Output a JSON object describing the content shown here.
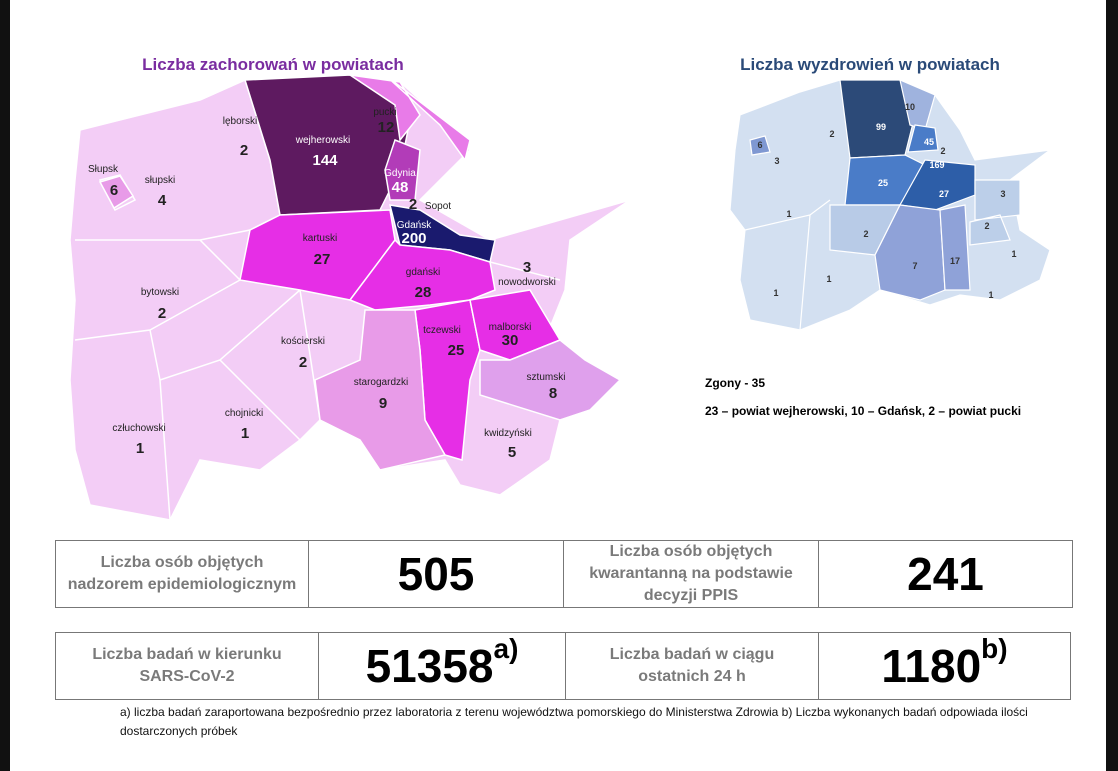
{
  "left_map": {
    "title": "Liczba zachorowań w powiatach",
    "regions": [
      {
        "name": "lęborski",
        "value": 2
      },
      {
        "name": "pucki",
        "value": 12
      },
      {
        "name": "wejherowski",
        "value": 144
      },
      {
        "name": "Słupsk",
        "value": 6
      },
      {
        "name": "słupski",
        "value": 4
      },
      {
        "name": "Gdynia",
        "value": 48
      },
      {
        "name": "Sopot",
        "value": 2
      },
      {
        "name": "Gdańsk",
        "value": 200
      },
      {
        "name": "kartuski",
        "value": 27
      },
      {
        "name": "gdański",
        "value": 28
      },
      {
        "name": "nowodworski",
        "value": 3
      },
      {
        "name": "bytowski",
        "value": 2
      },
      {
        "name": "kościerski",
        "value": 2
      },
      {
        "name": "tczewski",
        "value": 25
      },
      {
        "name": "malborski",
        "value": 30
      },
      {
        "name": "starogardzki",
        "value": 9
      },
      {
        "name": "sztumski",
        "value": 8
      },
      {
        "name": "chojnicki",
        "value": 1
      },
      {
        "name": "człuchowski",
        "value": 1
      },
      {
        "name": "kwidzyński",
        "value": 5
      }
    ]
  },
  "right_map": {
    "title": "Liczba wyzdrowień w powiatach",
    "values": [
      6,
      3,
      2,
      99,
      10,
      45,
      2,
      169,
      25,
      27,
      3,
      1,
      2,
      2,
      7,
      17,
      1,
      1,
      1,
      1
    ]
  },
  "deaths": {
    "total": "Zgony - 35",
    "breakdown": "23 – powiat wejherowski, 10 – Gdańsk, 2 – powiat pucki"
  },
  "table_1": {
    "cells": [
      {
        "text": "Liczba osób objętych nadzorem epidemiologicznym"
      },
      {
        "value": 505
      },
      {
        "text": "Liczba osób objętych kwarantanną na podstawie decyzji PPIS"
      },
      {
        "value": 241
      }
    ]
  },
  "table_2": {
    "cells": [
      {
        "text": "Liczba badań w kierunku SARS-CoV-2"
      },
      {
        "value": 51358,
        "note": "a)"
      },
      {
        "text": "Liczba badań w ciągu ostatnich 24 h"
      },
      {
        "value": 1180,
        "note": "b)"
      }
    ]
  },
  "footnote": "a) liczba badań zaraportowana bezpośrednio przez laboratoria z terenu województwa pomorskiego do Ministerstwa Zdrowia b) Liczba wykonanych badań odpowiada ilości dostarczonych próbek"
}
